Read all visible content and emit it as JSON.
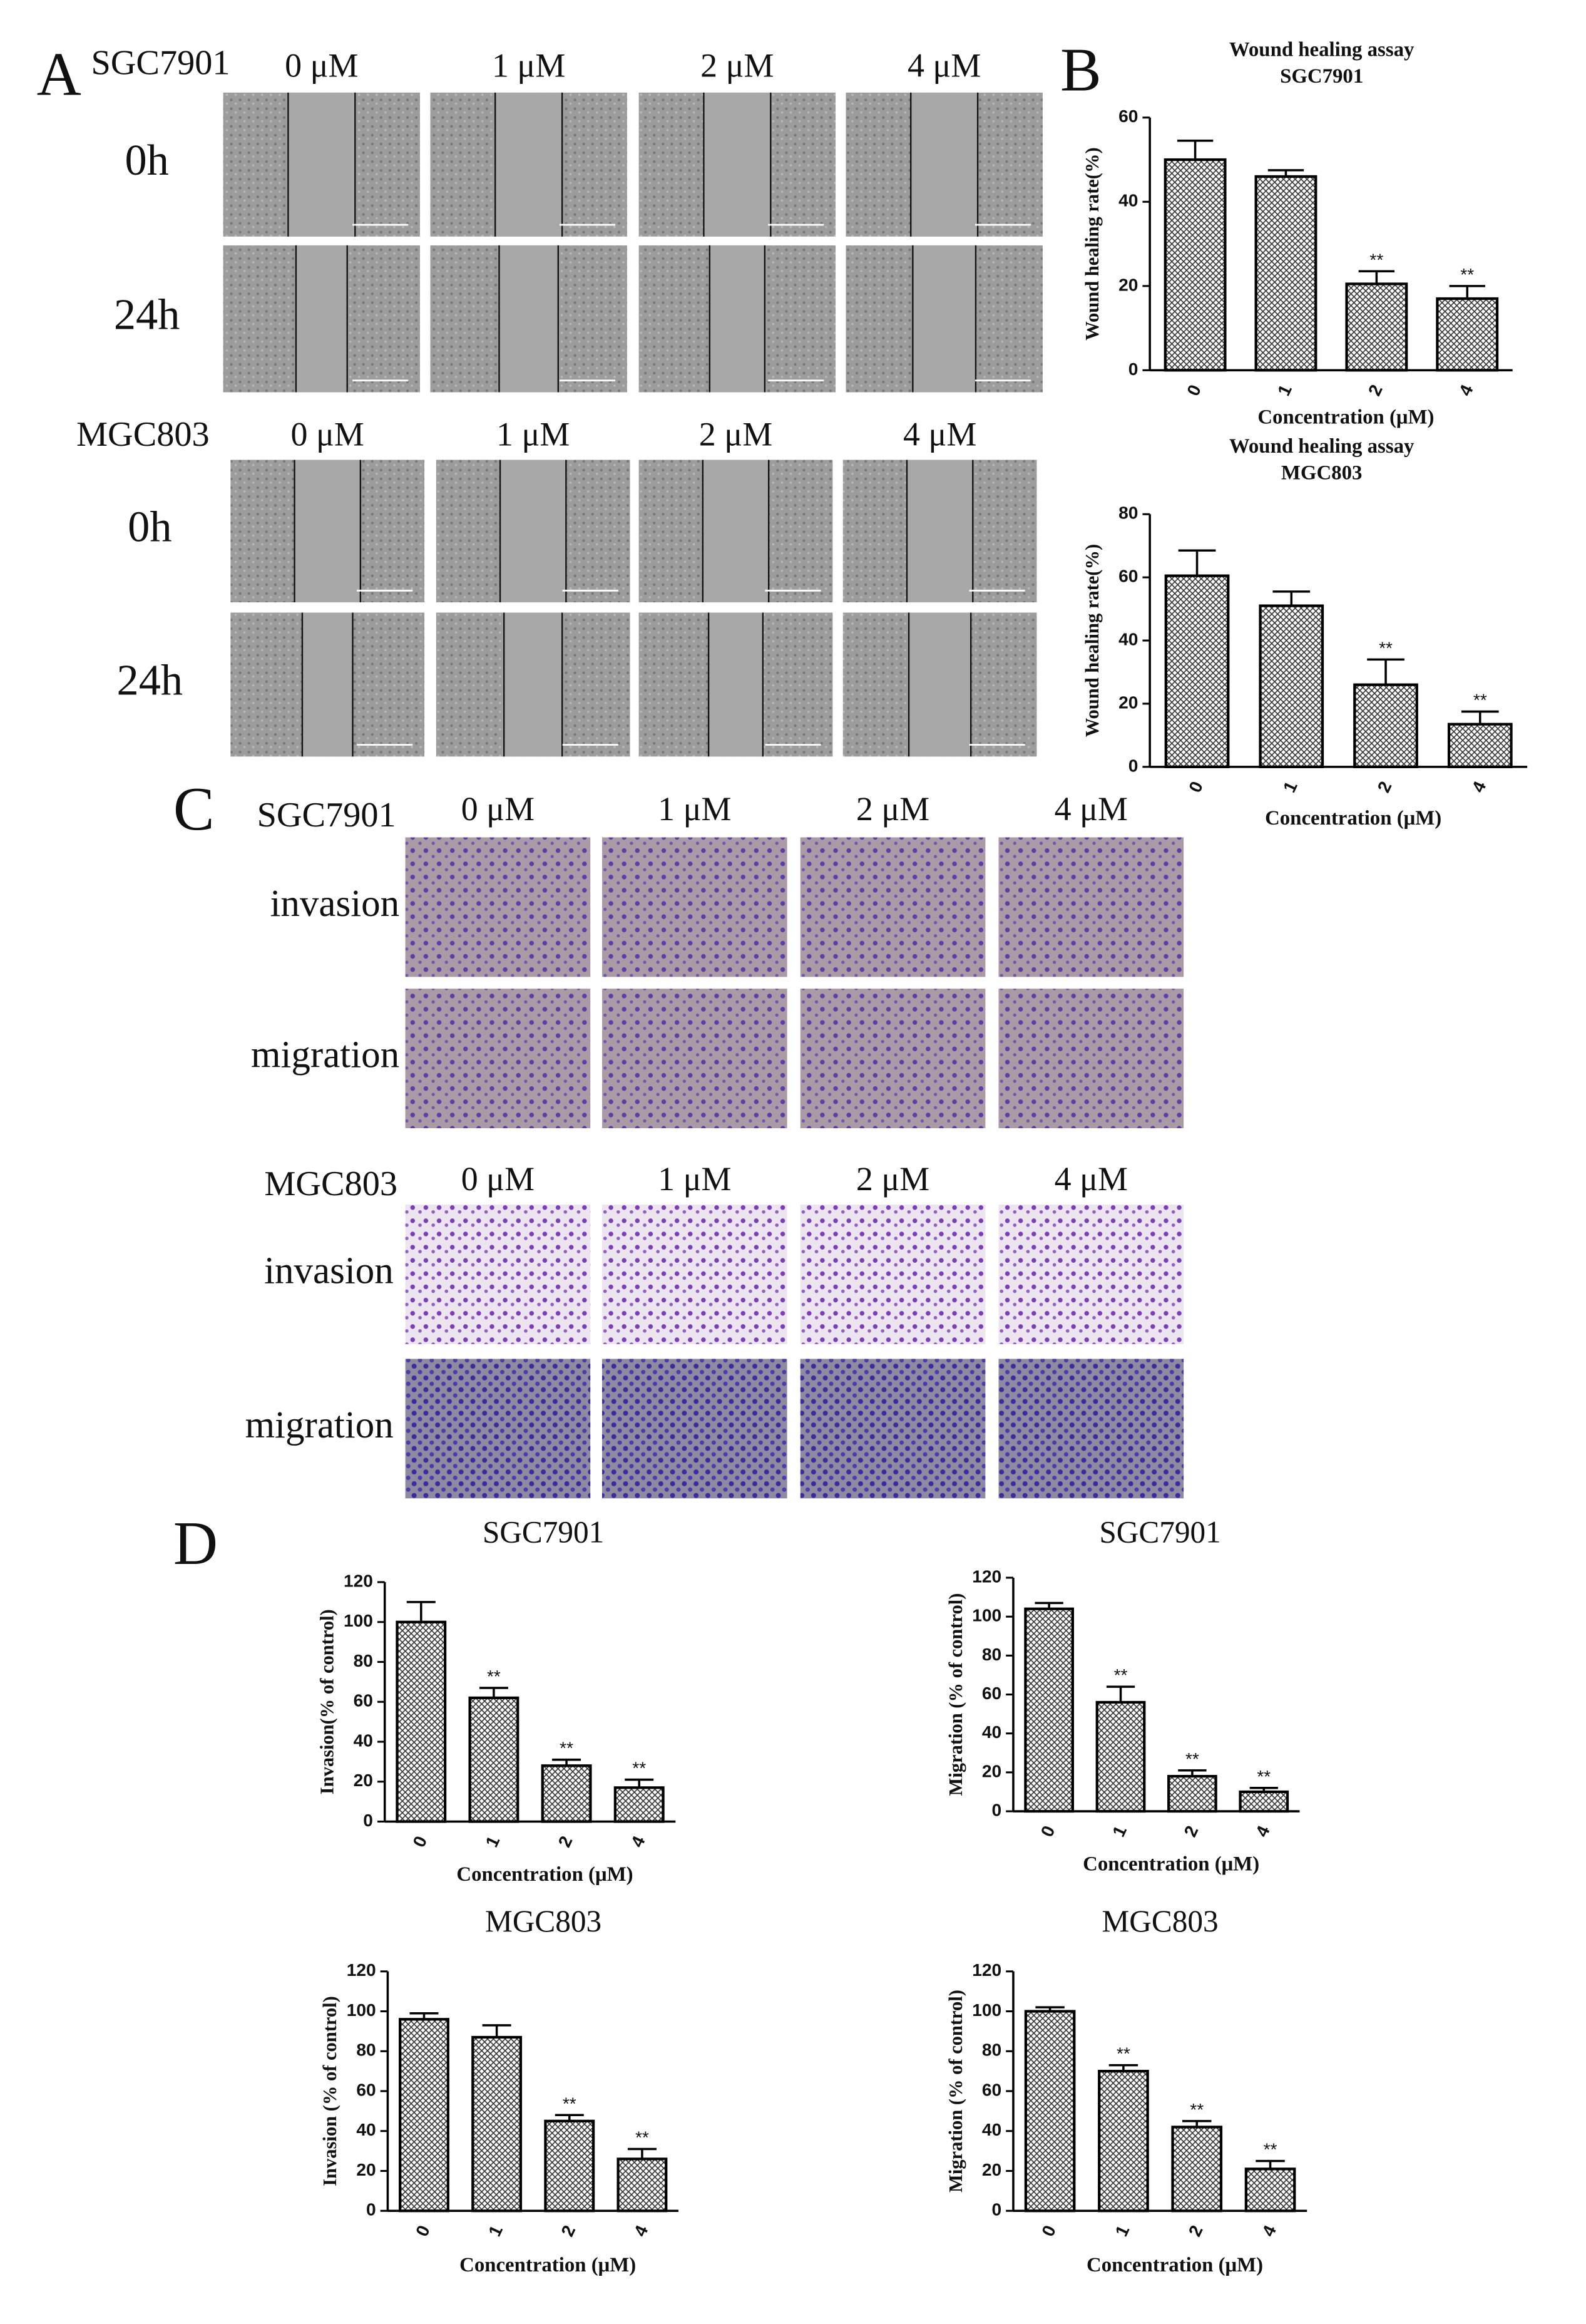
{
  "panel_labels": [
    "A",
    "B",
    "C",
    "D"
  ],
  "micrographs": [
    {
      "groups": [
        {
          "cell_line": "SGC7901",
          "columns": [
            "0 μM",
            "1 μM",
            "2 μM",
            "4 μM"
          ],
          "rows": [
            "0h",
            "24h"
          ]
        },
        {
          "cell_line": "MGC803",
          "columns": [
            "0 μM",
            "1 μM",
            "2 μM",
            "4 μM"
          ],
          "rows": [
            "0h",
            "24h"
          ]
        }
      ]
    },
    {
      "groups": [
        {
          "cell_line": "SGC7901",
          "columns": [
            "0 μM",
            "1 μM",
            "2 μM",
            "4 μM"
          ],
          "rows": [
            "invasion",
            "migration"
          ]
        },
        {
          "cell_line": "MGC803",
          "columns": [
            "0 μM",
            "1 μM",
            "2 μM",
            "4 μM"
          ],
          "rows": [
            "invasion",
            "migration"
          ]
        }
      ]
    }
  ],
  "chart_data": [
    {
      "type": "bar",
      "title": [
        "Wound healing assay",
        "SGC7901"
      ],
      "ylabel": "Wound healing rate(%)",
      "xlabel": "Concentration (μM)",
      "categories": [
        "0",
        "1",
        "2",
        "4"
      ],
      "values": [
        50,
        46,
        20.5,
        17
      ],
      "errors": [
        4.5,
        1.5,
        3,
        3
      ],
      "significance": [
        null,
        null,
        "**",
        "**"
      ],
      "ylim": [
        0,
        60
      ],
      "yticks": [
        0,
        20,
        40,
        60
      ],
      "color": "#000000"
    },
    {
      "type": "bar",
      "title": [
        "Wound healing assay",
        "MGC803"
      ],
      "ylabel": "Wound healing rate(%)",
      "xlabel": "Concentration (μM)",
      "categories": [
        "0",
        "1",
        "2",
        "4"
      ],
      "values": [
        60.5,
        51,
        26,
        13.5
      ],
      "errors": [
        8,
        4.5,
        8,
        4
      ],
      "significance": [
        null,
        null,
        "**",
        "**"
      ],
      "ylim": [
        0,
        80
      ],
      "yticks": [
        0,
        20,
        40,
        60,
        80
      ],
      "color": "#000000"
    },
    {
      "type": "bar",
      "title": [
        "SGC7901"
      ],
      "ylabel": "Invasion(% of control)",
      "xlabel": "Concentration (μM)",
      "categories": [
        "0",
        "1",
        "2",
        "4"
      ],
      "values": [
        100,
        62,
        28,
        17
      ],
      "errors": [
        10,
        5,
        3,
        4
      ],
      "significance": [
        null,
        "**",
        "**",
        "**"
      ],
      "ylim": [
        0,
        120
      ],
      "yticks": [
        0,
        20,
        40,
        60,
        80,
        100,
        120
      ],
      "color": "#000000"
    },
    {
      "type": "bar",
      "title": [
        "SGC7901"
      ],
      "ylabel": "Migration (% of control)",
      "xlabel": "Concentration (μM)",
      "categories": [
        "0",
        "1",
        "2",
        "4"
      ],
      "values": [
        104,
        56,
        18,
        10
      ],
      "errors": [
        3,
        8,
        3,
        2
      ],
      "significance": [
        null,
        "**",
        "**",
        "**"
      ],
      "ylim": [
        0,
        120
      ],
      "yticks": [
        0,
        20,
        40,
        60,
        80,
        100,
        120
      ],
      "color": "#000000"
    },
    {
      "type": "bar",
      "title": [
        "MGC803"
      ],
      "ylabel": "Invasion (% of control)",
      "xlabel": "Concentration (μM)",
      "categories": [
        "0",
        "1",
        "2",
        "4"
      ],
      "values": [
        96,
        87,
        45,
        26
      ],
      "errors": [
        3,
        6,
        3,
        5
      ],
      "significance": [
        null,
        null,
        "**",
        "**"
      ],
      "ylim": [
        0,
        120
      ],
      "yticks": [
        0,
        20,
        40,
        60,
        80,
        100,
        120
      ],
      "color": "#000000"
    },
    {
      "type": "bar",
      "title": [
        "MGC803"
      ],
      "ylabel": "Migration (% of control)",
      "xlabel": "Concentration (μM)",
      "categories": [
        "0",
        "1",
        "2",
        "4"
      ],
      "values": [
        100,
        70,
        42,
        21
      ],
      "errors": [
        2,
        3,
        3,
        4
      ],
      "significance": [
        null,
        "**",
        "**",
        "**"
      ],
      "ylim": [
        0,
        120
      ],
      "yticks": [
        0,
        20,
        40,
        60,
        80,
        100,
        120
      ],
      "color": "#000000"
    }
  ]
}
